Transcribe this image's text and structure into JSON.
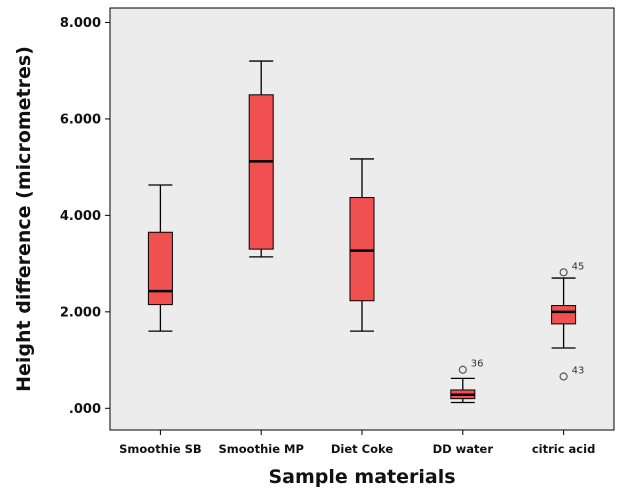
{
  "chart_data": {
    "type": "boxplot",
    "xlabel": "Sample materials",
    "ylabel": "Height difference (micrometres)",
    "ylim": [
      -0.45,
      8.3
    ],
    "y_ticks": [
      {
        "value": 0,
        "label": ".000"
      },
      {
        "value": 2,
        "label": "2.000"
      },
      {
        "value": 4,
        "label": "4.000"
      },
      {
        "value": 6,
        "label": "6.000"
      },
      {
        "value": 8,
        "label": "8.000"
      }
    ],
    "categories": [
      "Smoothie SB",
      "Smoothie MP",
      "Diet Coke",
      "DD water",
      "citric acid"
    ],
    "boxes": [
      {
        "min": 1.6,
        "q1": 2.15,
        "median": 2.43,
        "q3": 3.65,
        "max": 4.63,
        "outliers": []
      },
      {
        "min": 3.14,
        "q1": 3.3,
        "median": 5.12,
        "q3": 6.5,
        "max": 7.2,
        "outliers": []
      },
      {
        "min": 1.6,
        "q1": 2.23,
        "median": 3.27,
        "q3": 4.37,
        "max": 5.17,
        "outliers": []
      },
      {
        "min": 0.12,
        "q1": 0.2,
        "median": 0.28,
        "q3": 0.38,
        "max": 0.62,
        "outliers": [
          {
            "value": 0.8,
            "label": "36"
          }
        ]
      },
      {
        "min": 1.25,
        "q1": 1.75,
        "median": 2.0,
        "q3": 2.13,
        "max": 2.7,
        "outliers": [
          {
            "value": 2.82,
            "label": "45"
          },
          {
            "value": 0.66,
            "label": "43"
          }
        ]
      }
    ],
    "grid": false,
    "colors": {
      "plot_background": "#ececec",
      "box_fill": "#f05050",
      "line": "#000000",
      "outlier_stroke": "#555555"
    }
  }
}
